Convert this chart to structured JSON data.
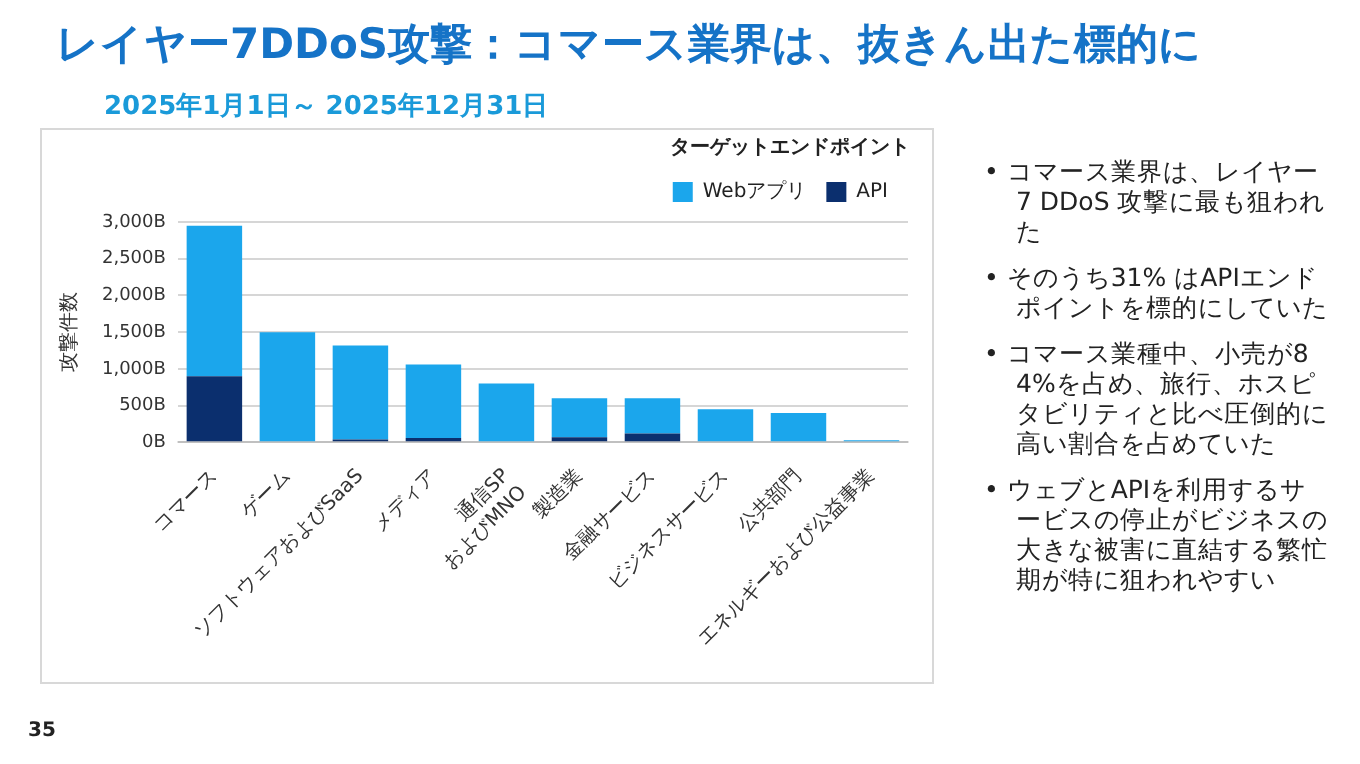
{
  "chart_data": {
    "type": "bar",
    "title": "レイヤー7DDoS攻撃：コマース業界は、抜きん出た標的に",
    "subtitle": "2025年1月1日～ 2025年12月31日",
    "ylabel": "攻撃件数",
    "legend_title": "ターゲットエンドポイント",
    "categories": [
      "コマース",
      "ゲーム",
      "ソフトウェアおよびSaaS",
      "メディア",
      "通信SP\nおよびMNO",
      "製造業",
      "金融サービス",
      "ビジネスサービス",
      "公共部門",
      "エネルギーおよび公益事業"
    ],
    "series": [
      {
        "name": "API",
        "color": "#0b2f6e",
        "values": [
          900,
          0,
          40,
          60,
          0,
          70,
          120,
          0,
          0,
          0
        ]
      },
      {
        "name": "Webアプリ",
        "color": "#1ba6ec",
        "values": [
          2050,
          1500,
          1280,
          1000,
          800,
          530,
          480,
          450,
          400,
          30
        ]
      }
    ],
    "stacked": true,
    "ylim": [
      0,
      3000
    ],
    "yticks": [
      {
        "value": 0,
        "label": "0B"
      },
      {
        "value": 500,
        "label": "500B"
      },
      {
        "value": 1000,
        "label": "1,000B"
      },
      {
        "value": 1500,
        "label": "1,500B"
      },
      {
        "value": 2000,
        "label": "2,000B"
      },
      {
        "value": 2500,
        "label": "2,500B"
      },
      {
        "value": 3000,
        "label": "3,000B"
      }
    ],
    "grid": "y",
    "legend": "top right",
    "annotations": [
      "• コマース業界は、レイヤー7 DDoS 攻撃に最も狙われた",
      "• そのうち31% はAPIエンドポイントを標的にしていた",
      "• コマース業種中、小売が84%を占め、旅行、ホスピタビリティと比べ圧倒的に高い割合を占めていた",
      "• ウェブとAPIを利用するサービスの停止がビジネスの大きな被害に直結する繁忙期が特に狙われやすい",
      "35"
    ]
  }
}
